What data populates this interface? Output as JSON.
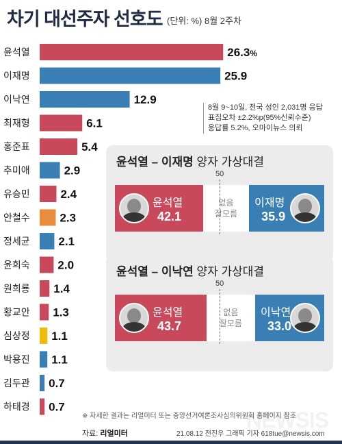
{
  "title": "차기 대선주자 선호도",
  "subtitle": "(단위: %) 8월 2주차",
  "note_lines": [
    "8월 9~10일, 전국 성인 2,031명 응답",
    "표집오차 ±2.2%p(95%신뢰수준)",
    "응답률 5.2%, 오마이뉴스 의뢰"
  ],
  "colors": {
    "red": "#c8485c",
    "blue": "#3a7fb4",
    "orange": "#e98d3c",
    "yellow": "#f1bb0e",
    "title": "#1f2a44"
  },
  "chart_data": {
    "type": "bar",
    "orientation": "horizontal",
    "unit": "%",
    "first_value_unit_label": "%",
    "xlim": [
      0,
      27
    ],
    "categories": [
      "윤석열",
      "이재명",
      "이낙연",
      "최재형",
      "홍준표",
      "추미애",
      "유승민",
      "안철수",
      "정세균",
      "윤희숙",
      "원희룡",
      "황교안",
      "심상정",
      "박용진",
      "김두관",
      "하태경"
    ],
    "values": [
      26.3,
      25.9,
      12.9,
      6.1,
      5.4,
      2.9,
      2.4,
      2.3,
      2.1,
      2.0,
      1.4,
      1.3,
      1.1,
      1.1,
      0.7,
      0.7
    ],
    "value_labels": [
      "26.3",
      "25.9",
      "12.9",
      "6.1",
      "5.4",
      "2.9",
      "2.4",
      "2.3",
      "2.1",
      "2.0",
      "1.4",
      "1.3",
      "1.1",
      "1.1",
      "0.7",
      "0.7"
    ],
    "bar_colors": [
      "red",
      "blue",
      "blue",
      "red",
      "red",
      "blue",
      "red",
      "orange",
      "blue",
      "red",
      "red",
      "red",
      "yellow",
      "blue",
      "blue",
      "red"
    ]
  },
  "matchups": [
    {
      "title_a": "윤석열 – 이재명",
      "title_b": " 양자 가상대결",
      "fifty_label": "50",
      "none_label_1": "없음",
      "none_label_2": "잘모름",
      "left": {
        "name": "윤석열",
        "value": 42.1,
        "value_label": "42.1",
        "color": "red",
        "photo_icon": "yoon-portrait-icon"
      },
      "right": {
        "name": "이재명",
        "value": 35.9,
        "value_label": "35.9",
        "color": "blue",
        "photo_icon": "lee-jm-portrait-icon"
      }
    },
    {
      "title_a": "윤석열 – 이낙연",
      "title_b": " 양자 가상대결",
      "fifty_label": "50",
      "none_label_1": "없음",
      "none_label_2": "잘모름",
      "left": {
        "name": "윤석열",
        "value": 43.7,
        "value_label": "43.7",
        "color": "red",
        "photo_icon": "yoon-portrait-icon"
      },
      "right": {
        "name": "이낙연",
        "value": 33.0,
        "value_label": "33.0",
        "color": "blue",
        "photo_icon": "lee-ny-portrait-icon"
      }
    }
  ],
  "footnote": "※ 자세한 결과는 리얼미터 또는 중앙선거여론조사심의위원회 홈페이지 참조",
  "source_label": "자료:",
  "source_name": "리얼미터",
  "credit": "21.08.12 전진우 그래픽 기자 618tue@newsis.com",
  "watermark": "NEWSIS"
}
